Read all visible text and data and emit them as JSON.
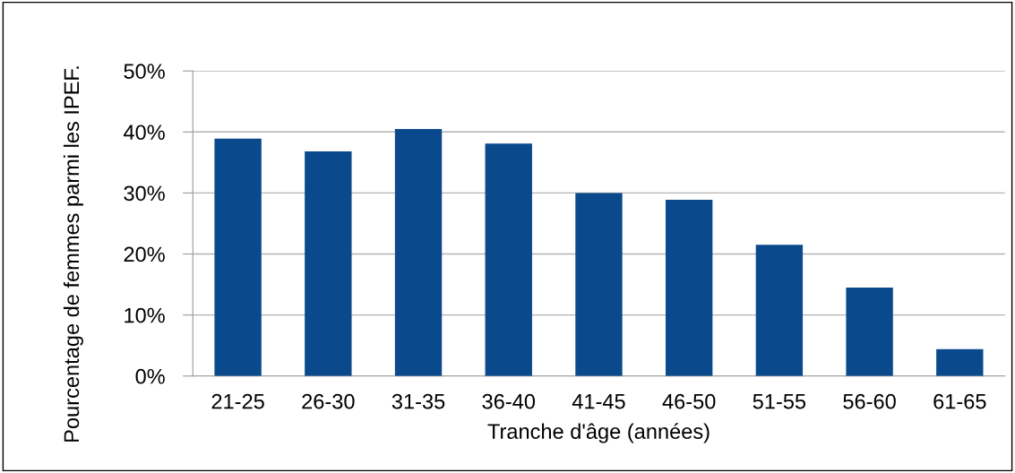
{
  "chart_data": {
    "type": "bar",
    "xlabel": "Tranche d'âge (années)",
    "ylabel": "Pourcentage de femmes parmi les IPEF.",
    "categories": [
      "21-25",
      "26-30",
      "31-35",
      "36-40",
      "41-45",
      "46-50",
      "51-55",
      "56-60",
      "61-65"
    ],
    "values": [
      38.9,
      36.8,
      40.5,
      38.1,
      30.0,
      28.9,
      21.5,
      14.5,
      4.4
    ],
    "color": "#0a4a8c",
    "ylim": [
      0,
      50
    ],
    "yticks": [
      {
        "value": 0,
        "label": "0%"
      },
      {
        "value": 10,
        "label": "10%"
      },
      {
        "value": 20,
        "label": "20%"
      },
      {
        "value": 30,
        "label": "30%"
      },
      {
        "value": 40,
        "label": "40%"
      },
      {
        "value": 50,
        "label": "50%"
      }
    ],
    "grid": "y"
  }
}
